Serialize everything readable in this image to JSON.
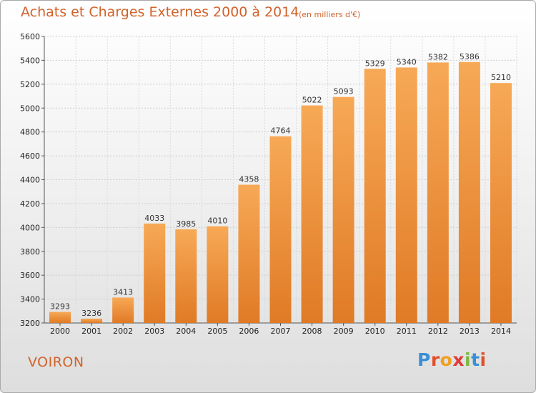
{
  "header": {
    "title": "Achats et Charges Externes 2000 à 2014",
    "subtitle": "(en milliers d'€)"
  },
  "footer": {
    "city": "VOIRON",
    "logo": [
      "P",
      "r",
      "o",
      "x",
      "i",
      "t",
      "i"
    ]
  },
  "colors": {
    "title": "#d2622a",
    "bar_light": "#f6a550",
    "bar_dark": "#e0802c",
    "grid": "#cccccc"
  },
  "chart_data": {
    "type": "bar",
    "title": "Achats et Charges Externes 2000 à 2014",
    "subtitle": "(en milliers d'€)",
    "categories": [
      "2000",
      "2001",
      "2002",
      "2003",
      "2004",
      "2005",
      "2006",
      "2007",
      "2008",
      "2009",
      "2010",
      "2011",
      "2012",
      "2013",
      "2014"
    ],
    "values": [
      3293,
      3236,
      3413,
      4033,
      3985,
      4010,
      4358,
      4764,
      5022,
      5093,
      5329,
      5340,
      5382,
      5386,
      5210
    ],
    "ylim": [
      3200,
      5600
    ],
    "yticks": [
      3200,
      3400,
      3600,
      3800,
      4000,
      4200,
      4400,
      4600,
      4800,
      5000,
      5200,
      5400,
      5600
    ],
    "grid": true,
    "xlabel": "",
    "ylabel": ""
  }
}
